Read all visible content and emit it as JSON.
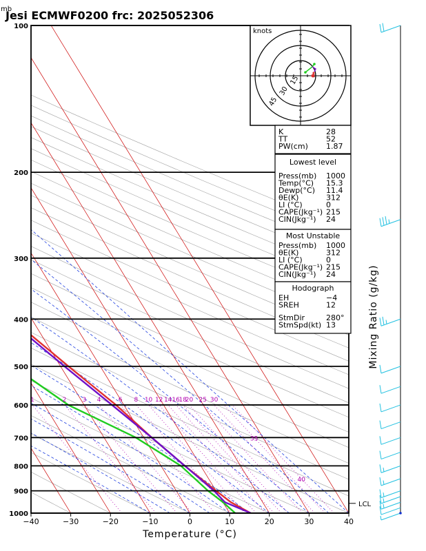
{
  "header": {
    "unit_label": "mb",
    "title": "Jesi ECMWF0200  frc: 2025052306"
  },
  "axes": {
    "xlabel": "Temperature (°C)",
    "y2label": "Mixing Ratio  (g/kg)",
    "pressure_ticks": [
      "100",
      "200",
      "300",
      "400",
      "500",
      "600",
      "700",
      "800",
      "900",
      "1000"
    ],
    "temp_ticks": [
      "−40",
      "−30",
      "−20",
      "−10",
      "0",
      "10",
      "20",
      "30",
      "40"
    ]
  },
  "mixing_ratio_labels": [
    "1",
    "2",
    "3",
    "4",
    "6",
    "8",
    "10",
    "12",
    "14",
    "16",
    "18",
    "20",
    "25",
    "30",
    "35",
    "40"
  ],
  "hodograph": {
    "units": "knots",
    "ring_labels": [
      "15",
      "30",
      "45"
    ]
  },
  "lcl_label": "LCL",
  "indices": {
    "top": [
      {
        "label": "K",
        "value": "28"
      },
      {
        "label": "TT",
        "value": "52"
      },
      {
        "label": "PW(cm)",
        "value": "1.87"
      }
    ],
    "lowest_title": "Lowest level",
    "lowest": [
      {
        "label": "Press(mb)",
        "value": "1000"
      },
      {
        "label": "Temp(°C)",
        "value": "15.3"
      },
      {
        "label": "Dewp(°C)",
        "value": "11.4"
      },
      {
        "label": "θE(K)",
        "value": "312"
      },
      {
        "label": "LI (°C)",
        "value": "0"
      },
      {
        "label": "CAPE(Jkg⁻¹)",
        "value": "215"
      },
      {
        "label": "CIN(Jkg⁻¹)",
        "value": "24"
      }
    ],
    "unstable_title": "Most Unstable",
    "unstable": [
      {
        "label": "Press(mb)",
        "value": "1000"
      },
      {
        "label": "θE(K)",
        "value": "312"
      },
      {
        "label": "LI (°C)",
        "value": "0"
      },
      {
        "label": "CAPE(Jkg⁻¹)",
        "value": "215"
      },
      {
        "label": "CIN(Jkg⁻¹)",
        "value": "24"
      }
    ],
    "hodo_title": "Hodograph",
    "hodo": [
      {
        "label": "EH",
        "value": "−4"
      },
      {
        "label": "SREH",
        "value": "12"
      },
      {
        "label": "StmDir",
        "value": "280°"
      },
      {
        "label": "StmSpd(kt)",
        "value": "13"
      }
    ]
  },
  "chart_data": {
    "type": "line",
    "xlabel": "Temperature (°C)",
    "ylabel": "mb",
    "xlim": [
      -40,
      40
    ],
    "ylim": [
      1000,
      100
    ],
    "y_scale": "log",
    "grid": true,
    "colors": {
      "temperature": "#e03030",
      "dewpoint": "#20cc20",
      "parcel": "#7010c8",
      "isotherm": "#cc0000",
      "dry_adiabat": "#a0a0a0",
      "moist_adiabat": "#2040e0",
      "mixing_ratio": "#b000b0",
      "barb": "#20c0e0"
    },
    "series": [
      {
        "name": "Temperature",
        "points": [
          [
            15.3,
            1000
          ],
          [
            12,
            950
          ],
          [
            10,
            900
          ],
          [
            6,
            800
          ],
          [
            2,
            700
          ],
          [
            -2,
            600
          ],
          [
            -8,
            500
          ],
          [
            -15,
            400
          ],
          [
            -23,
            300
          ],
          [
            -31,
            250
          ],
          [
            -36,
            200
          ],
          [
            -44,
            150
          ],
          [
            -52,
            100
          ]
        ]
      },
      {
        "name": "Dewpoint",
        "points": [
          [
            11.4,
            1000
          ],
          [
            10,
            950
          ],
          [
            8,
            900
          ],
          [
            5,
            800
          ],
          [
            -2,
            700
          ],
          [
            -14,
            600
          ],
          [
            -22,
            500
          ],
          [
            -25,
            400
          ],
          [
            -35,
            300
          ],
          [
            -46,
            250
          ],
          [
            -51,
            200
          ],
          [
            -56,
            150
          ],
          [
            -62,
            100
          ]
        ]
      },
      {
        "name": "Parcel",
        "points": [
          [
            15.3,
            1000
          ],
          [
            10.5,
            950
          ],
          [
            9.5,
            900
          ],
          [
            6,
            800
          ],
          [
            2,
            700
          ],
          [
            -3,
            600
          ],
          [
            -9,
            500
          ],
          [
            -16,
            400
          ],
          [
            -26,
            300
          ],
          [
            -41,
            200
          ],
          [
            -62,
            100
          ]
        ]
      }
    ],
    "wind_barbs": [
      {
        "p": 1000,
        "speed_kt": 5
      },
      {
        "p": 975,
        "speed_kt": 10
      },
      {
        "p": 950,
        "speed_kt": 15
      },
      {
        "p": 925,
        "speed_kt": 15
      },
      {
        "p": 900,
        "speed_kt": 15
      },
      {
        "p": 850,
        "speed_kt": 15
      },
      {
        "p": 800,
        "speed_kt": 15
      },
      {
        "p": 750,
        "speed_kt": 10
      },
      {
        "p": 700,
        "speed_kt": 10
      },
      {
        "p": 650,
        "speed_kt": 10
      },
      {
        "p": 600,
        "speed_kt": 10
      },
      {
        "p": 550,
        "speed_kt": 10
      },
      {
        "p": 500,
        "speed_kt": 10
      },
      {
        "p": 400,
        "speed_kt": 25
      },
      {
        "p": 250,
        "speed_kt": 35
      },
      {
        "p": 100,
        "speed_kt": 20
      }
    ]
  }
}
